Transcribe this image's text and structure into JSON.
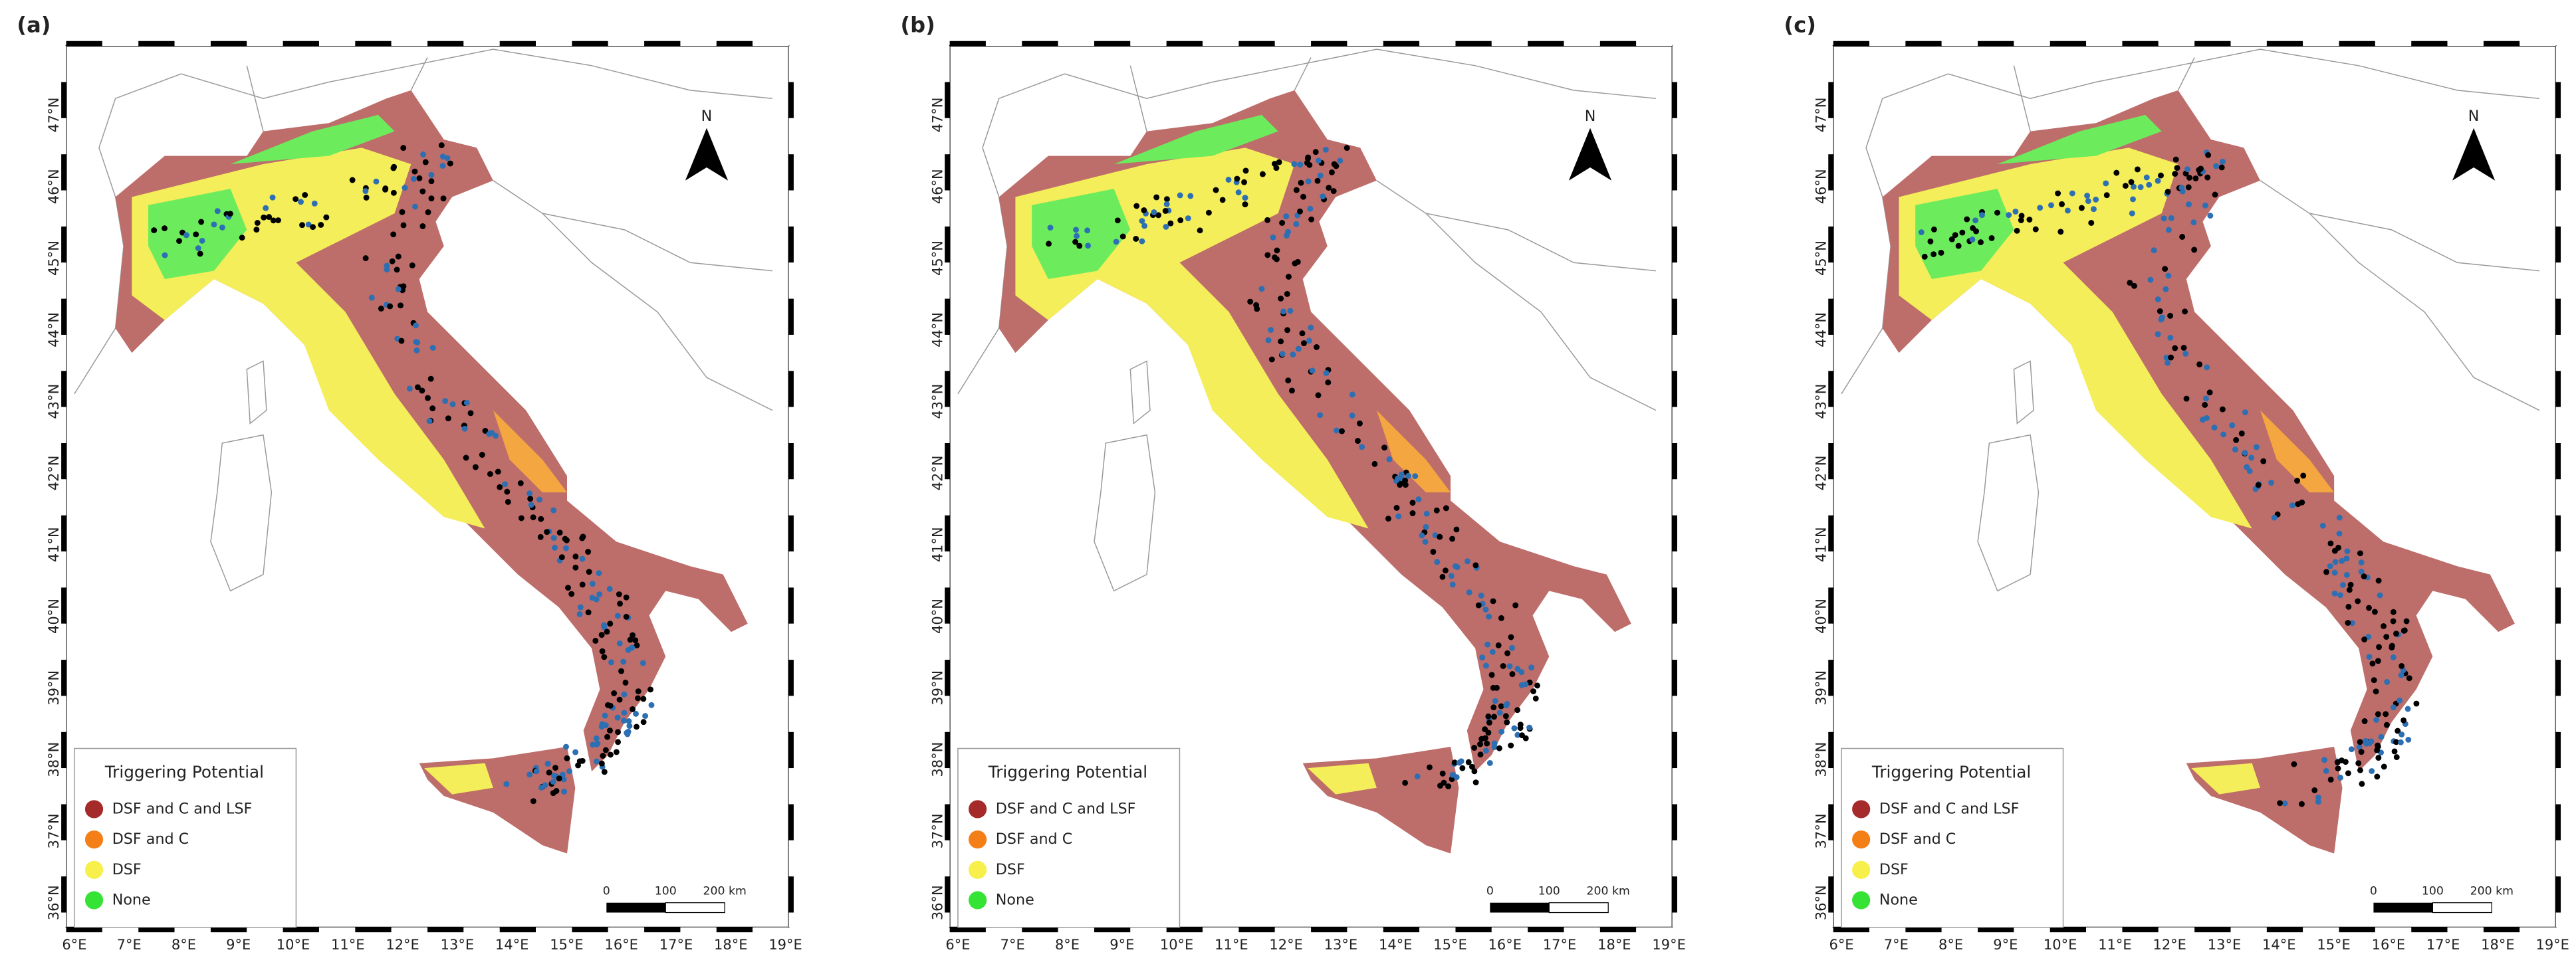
{
  "panels": [
    {
      "label": "(a)"
    },
    {
      "label": "(b)"
    },
    {
      "label": "(c)"
    }
  ],
  "lon_ticks": [
    "6°E",
    "7°E",
    "8°E",
    "9°E",
    "10°E",
    "11°E",
    "12°E",
    "13°E",
    "14°E",
    "15°E",
    "16°E",
    "17°E",
    "18°E",
    "19°E"
  ],
  "lat_ticks": [
    "36°N",
    "37°N",
    "38°N",
    "39°N",
    "40°N",
    "41°N",
    "42°N",
    "43°N",
    "44°N",
    "45°N",
    "46°N",
    "47°N"
  ],
  "north": "N",
  "scale": {
    "labels": [
      "0",
      "100",
      "200 km"
    ]
  },
  "legend": {
    "title": "Triggering Potential",
    "items": [
      {
        "label": "DSF and C and LSF",
        "color": "#a52a2a"
      },
      {
        "label": "DSF and C",
        "color": "#f57f17"
      },
      {
        "label": "DSF",
        "color": "#f7ef4a"
      },
      {
        "label": "None",
        "color": "#35e335"
      }
    ]
  }
}
